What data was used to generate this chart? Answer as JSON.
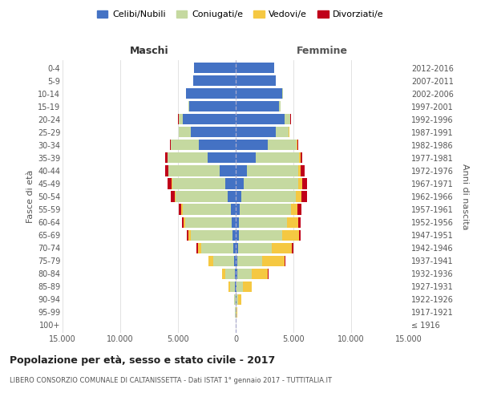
{
  "age_groups": [
    "100+",
    "95-99",
    "90-94",
    "85-89",
    "80-84",
    "75-79",
    "70-74",
    "65-69",
    "60-64",
    "55-59",
    "50-54",
    "45-49",
    "40-44",
    "35-39",
    "30-34",
    "25-29",
    "20-24",
    "15-19",
    "10-14",
    "5-9",
    "0-4"
  ],
  "birth_years": [
    "≤ 1916",
    "1917-1921",
    "1922-1926",
    "1927-1931",
    "1932-1936",
    "1937-1941",
    "1942-1946",
    "1947-1951",
    "1952-1956",
    "1957-1961",
    "1962-1966",
    "1967-1971",
    "1972-1976",
    "1977-1981",
    "1982-1986",
    "1987-1991",
    "1992-1996",
    "1997-2001",
    "2002-2006",
    "2007-2011",
    "2012-2016"
  ],
  "males": {
    "celibi": [
      10,
      20,
      30,
      60,
      100,
      150,
      200,
      300,
      350,
      400,
      700,
      900,
      1400,
      2400,
      3200,
      3900,
      4600,
      4000,
      4300,
      3700,
      3600
    ],
    "coniugati": [
      10,
      30,
      80,
      400,
      800,
      1800,
      2800,
      3600,
      4000,
      4200,
      4500,
      4600,
      4400,
      3500,
      2400,
      1000,
      350,
      80,
      10,
      5,
      5
    ],
    "vedovi": [
      5,
      15,
      50,
      180,
      280,
      380,
      280,
      180,
      130,
      90,
      70,
      50,
      35,
      25,
      15,
      8,
      4,
      3,
      0,
      0,
      0
    ],
    "divorziati": [
      0,
      3,
      8,
      15,
      25,
      45,
      90,
      140,
      190,
      240,
      380,
      330,
      280,
      180,
      90,
      45,
      15,
      4,
      0,
      0,
      0
    ]
  },
  "females": {
    "nubili": [
      10,
      20,
      35,
      70,
      110,
      160,
      190,
      260,
      290,
      340,
      480,
      680,
      980,
      1750,
      2750,
      3450,
      4250,
      3750,
      4050,
      3450,
      3350
    ],
    "coniugate": [
      10,
      35,
      140,
      560,
      1250,
      2150,
      2950,
      3750,
      4150,
      4450,
      4750,
      4750,
      4450,
      3750,
      2550,
      1150,
      480,
      140,
      20,
      5,
      5
    ],
    "vedove": [
      5,
      75,
      280,
      750,
      1450,
      1950,
      1750,
      1450,
      950,
      580,
      480,
      330,
      190,
      95,
      55,
      28,
      9,
      4,
      0,
      0,
      0
    ],
    "divorziate": [
      0,
      4,
      9,
      25,
      45,
      75,
      120,
      170,
      240,
      290,
      480,
      430,
      330,
      190,
      95,
      48,
      18,
      4,
      0,
      0,
      0
    ]
  },
  "colors": {
    "celibi": "#4472C4",
    "coniugati": "#c5d9a0",
    "vedovi": "#F5C842",
    "divorziati": "#C0001A"
  },
  "xlim": 15000,
  "title": "Popolazione per età, sesso e stato civile - 2017",
  "subtitle": "LIBERO CONSORZIO COMUNALE DI CALTANISSETTA - Dati ISTAT 1° gennaio 2017 - TUTTITALIA.IT",
  "xlabel_left": "Maschi",
  "xlabel_right": "Femmine",
  "ylabel_left": "Fasce di età",
  "ylabel_right": "Anni di nascita",
  "legend_labels": [
    "Celibi/Nubili",
    "Coniugati/e",
    "Vedovi/e",
    "Divorziati/e"
  ]
}
